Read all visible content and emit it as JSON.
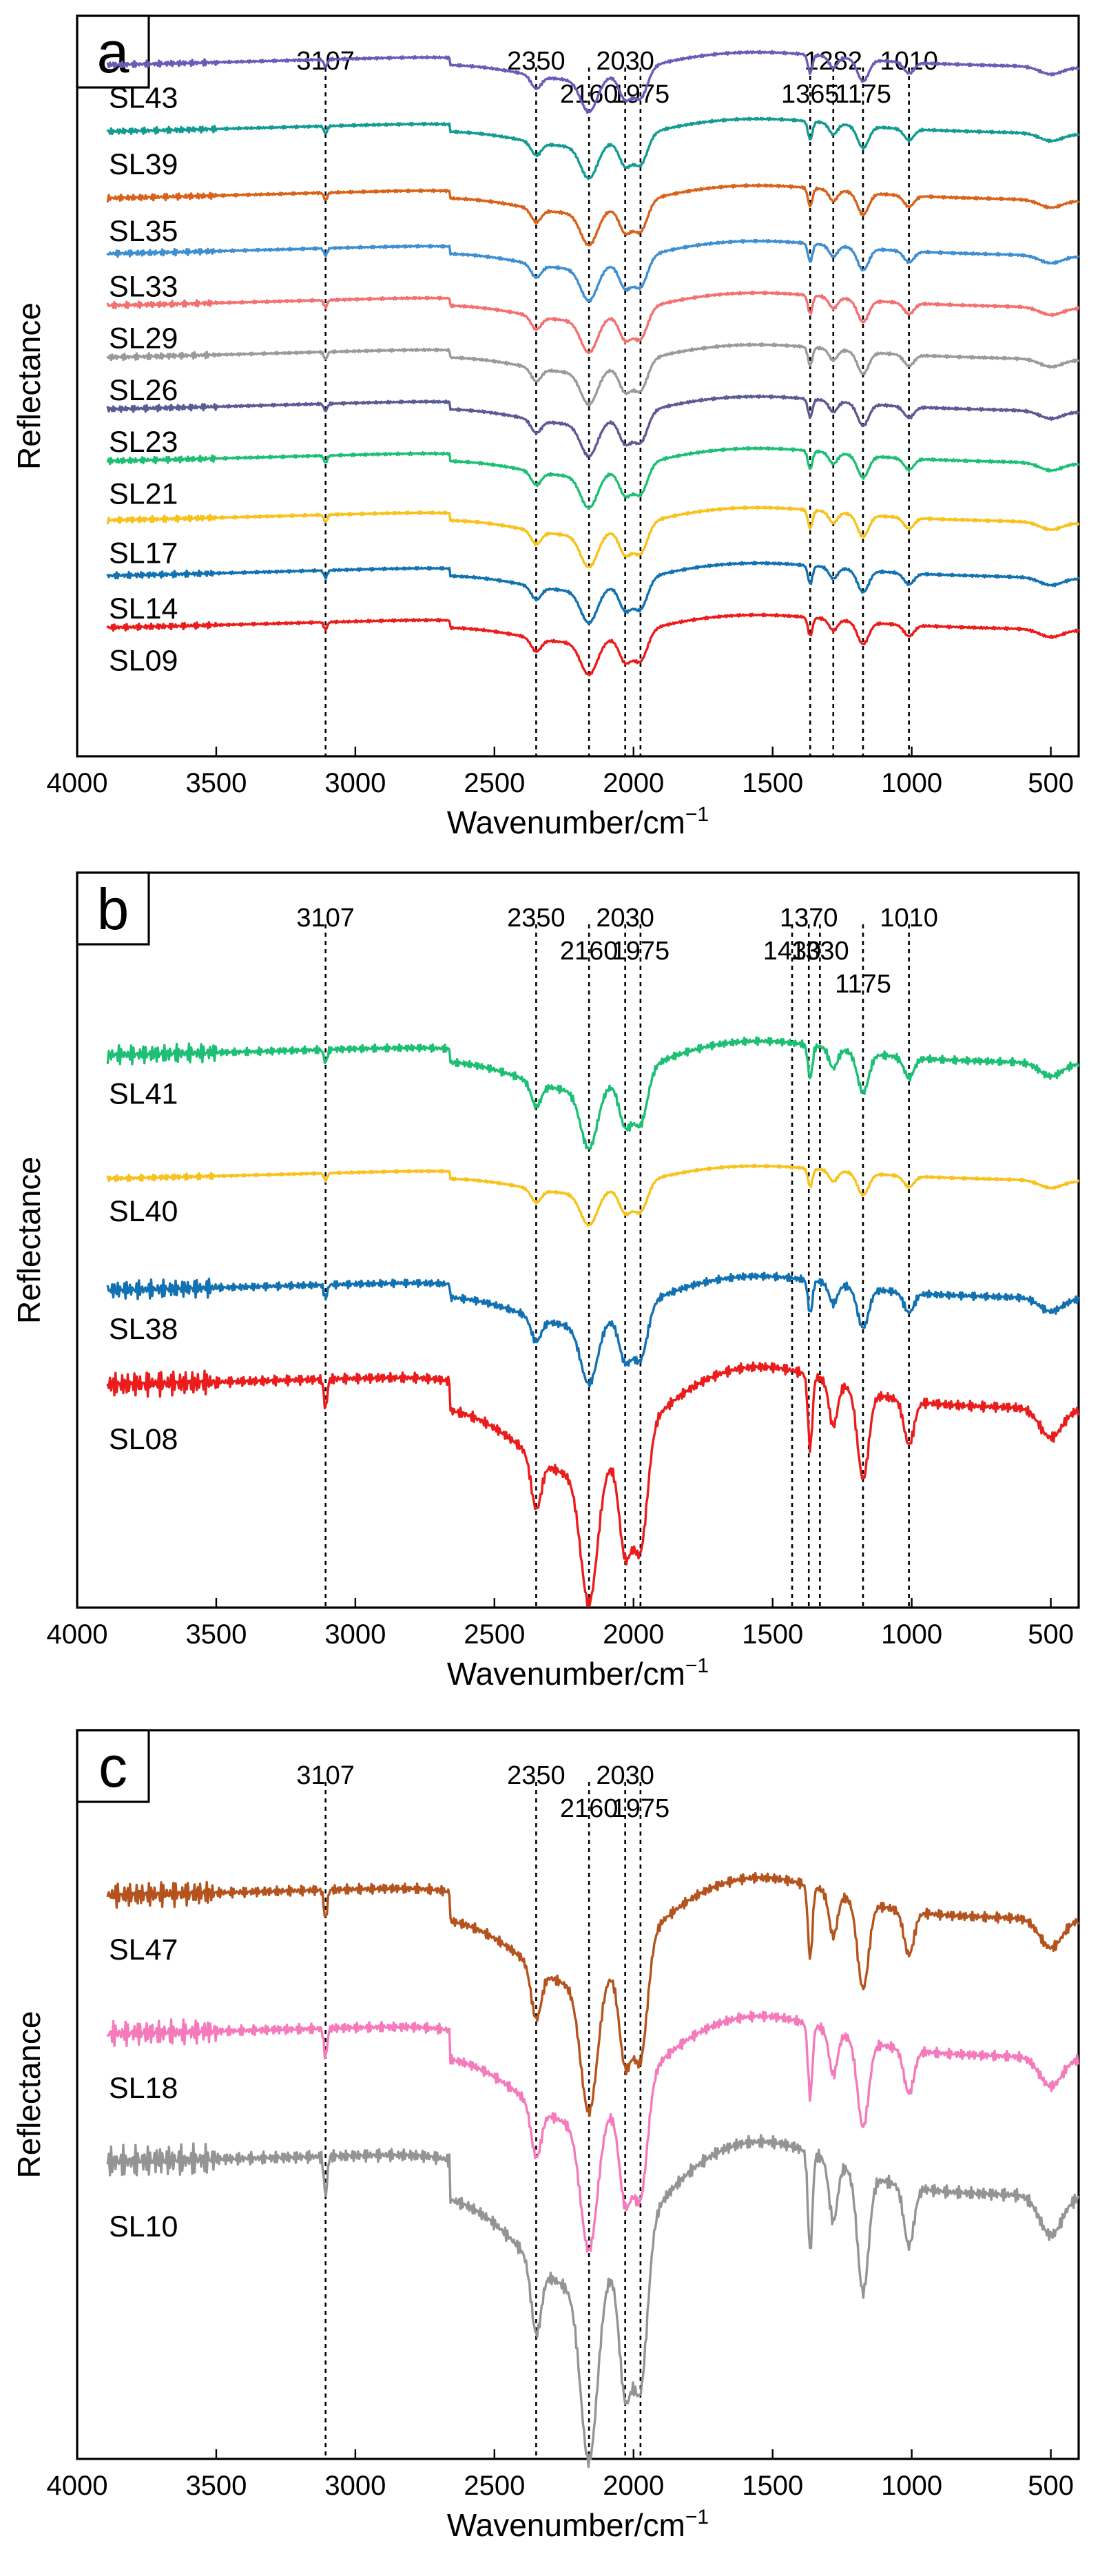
{
  "figure": {
    "x_axis_label": "Wavenumber/cm",
    "x_axis_label_sup": "−1",
    "y_axis_label": "Reflectance"
  },
  "chart_data": [
    {
      "panel": "a",
      "type": "line",
      "xlim": [
        4000,
        400
      ],
      "x_ticks": [
        4000,
        3500,
        3000,
        2500,
        2000,
        1500,
        1000,
        500
      ],
      "xlabel": "Wavenumber/cm⁻¹",
      "ylabel": "Reflectance",
      "peak_lines": [
        {
          "x": 3107,
          "label": "3107",
          "row": 1
        },
        {
          "x": 2350,
          "label": "2350",
          "row": 1
        },
        {
          "x": 2160,
          "label": "2160",
          "row": 2
        },
        {
          "x": 2030,
          "label": "2030",
          "row": 1
        },
        {
          "x": 1975,
          "label": "1975",
          "row": 2
        },
        {
          "x": 1365,
          "label": "1365",
          "row": 2
        },
        {
          "x": 1282,
          "label": "1282",
          "row": 1
        },
        {
          "x": 1175,
          "label": "1175",
          "row": 2
        },
        {
          "x": 1010,
          "label": "1010",
          "row": 1
        }
      ],
      "series": [
        {
          "name": "SL43",
          "color": "#6a5bb8",
          "profile": "flat",
          "offset": 0.93
        },
        {
          "name": "SL39",
          "color": "#139b93",
          "profile": "flat",
          "offset": 0.84
        },
        {
          "name": "SL35",
          "color": "#d9621a",
          "profile": "flat",
          "offset": 0.75
        },
        {
          "name": "SL33",
          "color": "#3e8ed0",
          "profile": "flat",
          "offset": 0.675
        },
        {
          "name": "SL29",
          "color": "#f27070",
          "profile": "flat",
          "offset": 0.605
        },
        {
          "name": "SL26",
          "color": "#9a9a9a",
          "profile": "flat",
          "offset": 0.535
        },
        {
          "name": "SL23",
          "color": "#5c5a94",
          "profile": "flat",
          "offset": 0.465
        },
        {
          "name": "SL21",
          "color": "#1dbf74",
          "profile": "flat",
          "offset": 0.395
        },
        {
          "name": "SL17",
          "color": "#f7c21c",
          "profile": "flat",
          "offset": 0.315
        },
        {
          "name": "SL14",
          "color": "#1171b1",
          "profile": "flat",
          "offset": 0.24
        },
        {
          "name": "SL09",
          "color": "#eb1c1c",
          "profile": "flat",
          "offset": 0.17
        }
      ]
    },
    {
      "panel": "b",
      "type": "line",
      "xlim": [
        4000,
        400
      ],
      "x_ticks": [
        4000,
        3500,
        3000,
        2500,
        2000,
        1500,
        1000,
        500
      ],
      "xlabel": "Wavenumber/cm⁻¹",
      "ylabel": "Reflectance",
      "peak_lines": [
        {
          "x": 3107,
          "label": "3107",
          "row": 1
        },
        {
          "x": 2350,
          "label": "2350",
          "row": 1
        },
        {
          "x": 2160,
          "label": "2160",
          "row": 2
        },
        {
          "x": 2030,
          "label": "2030",
          "row": 1
        },
        {
          "x": 1975,
          "label": "1975",
          "row": 2
        },
        {
          "x": 1430,
          "label": "1430",
          "row": 2
        },
        {
          "x": 1370,
          "label": "1370",
          "row": 1
        },
        {
          "x": 1330,
          "label": "1330",
          "row": 2
        },
        {
          "x": 1175,
          "label": "1175",
          "row": 3
        },
        {
          "x": 1010,
          "label": "1010",
          "row": 1
        }
      ],
      "series": [
        {
          "name": "SL41",
          "color": "#1dbf74",
          "profile": "medium",
          "offset": 0.74
        },
        {
          "name": "SL40",
          "color": "#f7c21c",
          "profile": "flat",
          "offset": 0.58
        },
        {
          "name": "SL38",
          "color": "#1171b1",
          "profile": "medium",
          "offset": 0.42
        },
        {
          "name": "SL08",
          "color": "#eb1c1c",
          "profile": "deep",
          "offset": 0.27
        }
      ]
    },
    {
      "panel": "c",
      "type": "line",
      "xlim": [
        4000,
        400
      ],
      "x_ticks": [
        4000,
        3500,
        3000,
        2500,
        2000,
        1500,
        1000,
        500
      ],
      "xlabel": "Wavenumber/cm⁻¹",
      "ylabel": "Reflectance",
      "peak_lines": [
        {
          "x": 3107,
          "label": "3107",
          "row": 1
        },
        {
          "x": 2350,
          "label": "2350",
          "row": 1
        },
        {
          "x": 2160,
          "label": "2160",
          "row": 2
        },
        {
          "x": 2030,
          "label": "2030",
          "row": 1
        },
        {
          "x": 1975,
          "label": "1975",
          "row": 2
        }
      ],
      "series": [
        {
          "name": "SL47",
          "color": "#b5531e",
          "profile": "deep",
          "offset": 0.74
        },
        {
          "name": "SL18",
          "color": "#f57abb",
          "profile": "deep",
          "offset": 0.55
        },
        {
          "name": "SL10",
          "color": "#949494",
          "profile": "deepest",
          "offset": 0.36
        }
      ]
    }
  ]
}
